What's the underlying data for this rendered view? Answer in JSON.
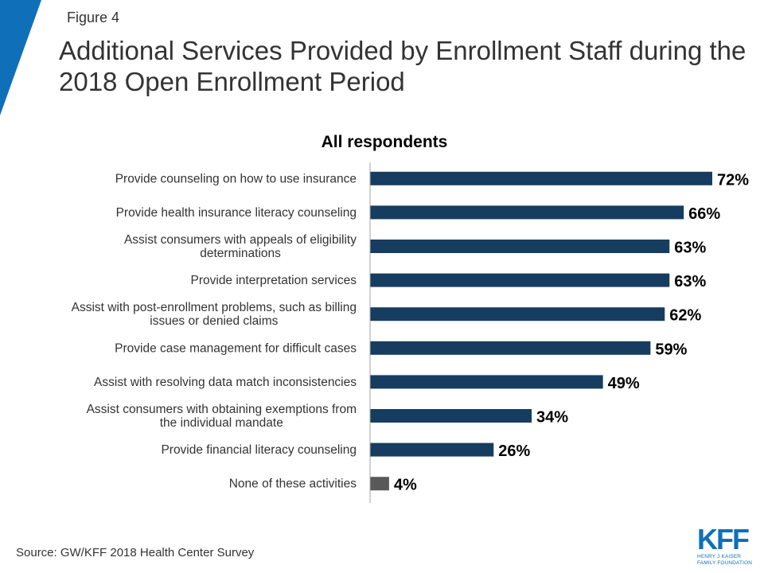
{
  "header": {
    "figure_label": "Figure 4",
    "title": "Additional Services Provided by Enrollment Staff during the 2018 Open Enrollment Period"
  },
  "colors": {
    "accent": "#0f6fb8",
    "bar": "#163d5f",
    "bar_none": "#595959",
    "axis": "#a6a6a6"
  },
  "chart_data": {
    "type": "bar",
    "orientation": "horizontal",
    "title": "All respondents",
    "xlabel": "",
    "ylabel": "",
    "xlim": [
      0,
      72
    ],
    "grid": false,
    "legend": "none",
    "value_suffix": "%",
    "categories": [
      [
        "Provide counseling on how to use insurance"
      ],
      [
        "Provide health insurance literacy counseling"
      ],
      [
        "Assist consumers with appeals of eligibility",
        "determinations"
      ],
      [
        "Provide interpretation services"
      ],
      [
        "Assist with post-enrollment problems, such as billing",
        "issues or denied claims"
      ],
      [
        "Provide case management for difficult cases"
      ],
      [
        "Assist with resolving data match inconsistencies"
      ],
      [
        "Assist consumers with obtaining exemptions from",
        "the individual mandate"
      ],
      [
        "Provide financial literacy counseling"
      ],
      [
        "None of these activities"
      ]
    ],
    "values": [
      72,
      66,
      63,
      63,
      62,
      59,
      49,
      34,
      26,
      4
    ],
    "value_labels": [
      "72%",
      "66%",
      "63%",
      "63%",
      "62%",
      "59%",
      "49%",
      "34%",
      "26%",
      "4%"
    ]
  },
  "footer": {
    "source": "Source: GW/KFF 2018 Health Center Survey",
    "logo_mark": "KFF",
    "logo_line1": "HENRY J KAISER",
    "logo_line2": "FAMILY FOUNDATION"
  }
}
